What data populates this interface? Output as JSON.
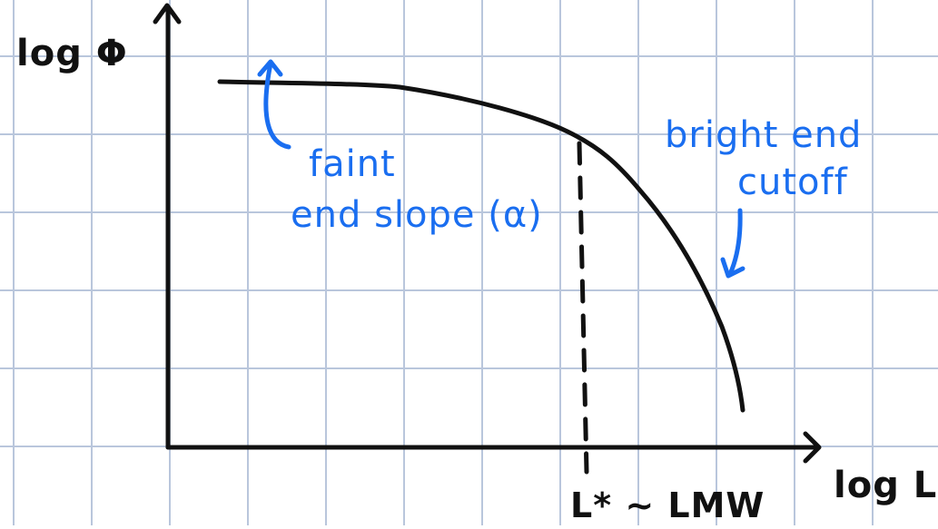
{
  "y_axis_label": "log Φ",
  "x_axis_label": "log L",
  "marker_label": "L* ~ LMW",
  "annotations": {
    "faint_end": [
      "faint",
      "end slope (α)"
    ],
    "bright_end": [
      "bright end",
      "cutoff"
    ]
  },
  "colors": {
    "grid": "#b9c6dc",
    "ink": "#111111",
    "annotation": "#1a6ef0",
    "background": "#ffffff"
  }
}
